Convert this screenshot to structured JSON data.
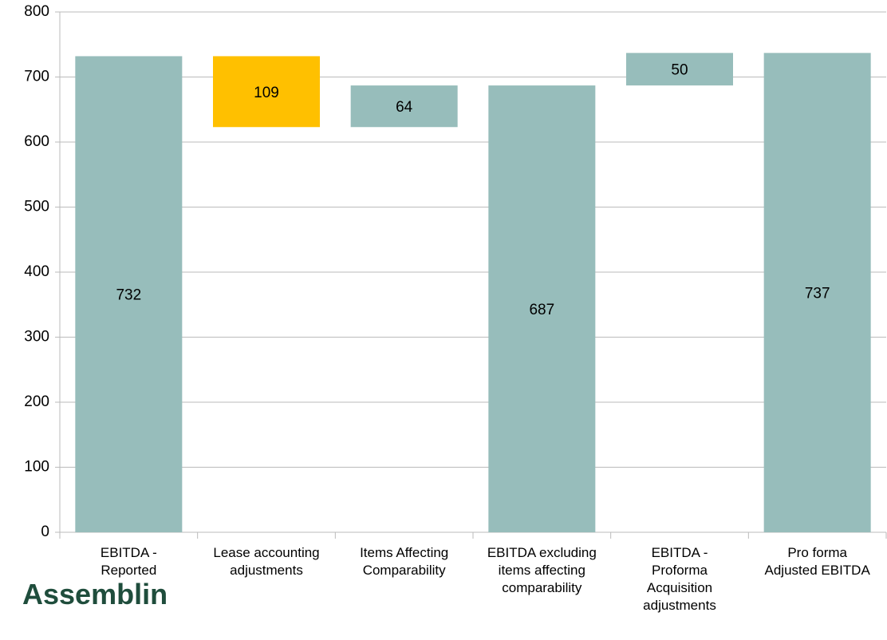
{
  "chart_data": {
    "type": "waterfall",
    "categories": [
      "EBITDA -\nReported",
      "Lease accounting\nadjustments",
      "Items Affecting\nComparability",
      "EBITDA excluding\nitems affecting\ncomparability",
      "EBITDA -\nProforma\nAcquisition\nadjustments",
      "Pro forma\nAdjusted EBITDA"
    ],
    "values": [
      732,
      -109,
      64,
      687,
      50,
      737
    ],
    "value_labels": [
      "732",
      "109",
      "64",
      "687",
      "50",
      "737"
    ],
    "totals": [
      true,
      false,
      false,
      true,
      false,
      true
    ],
    "colors": [
      "#97bdbb",
      "#ffc000",
      "#97bdbb",
      "#97bdbb",
      "#97bdbb",
      "#97bdbb"
    ],
    "ylim": [
      0,
      800
    ],
    "yticks": [
      0,
      100,
      200,
      300,
      400,
      500,
      600,
      700,
      800
    ],
    "grid": true,
    "brand": "Assemblin"
  }
}
